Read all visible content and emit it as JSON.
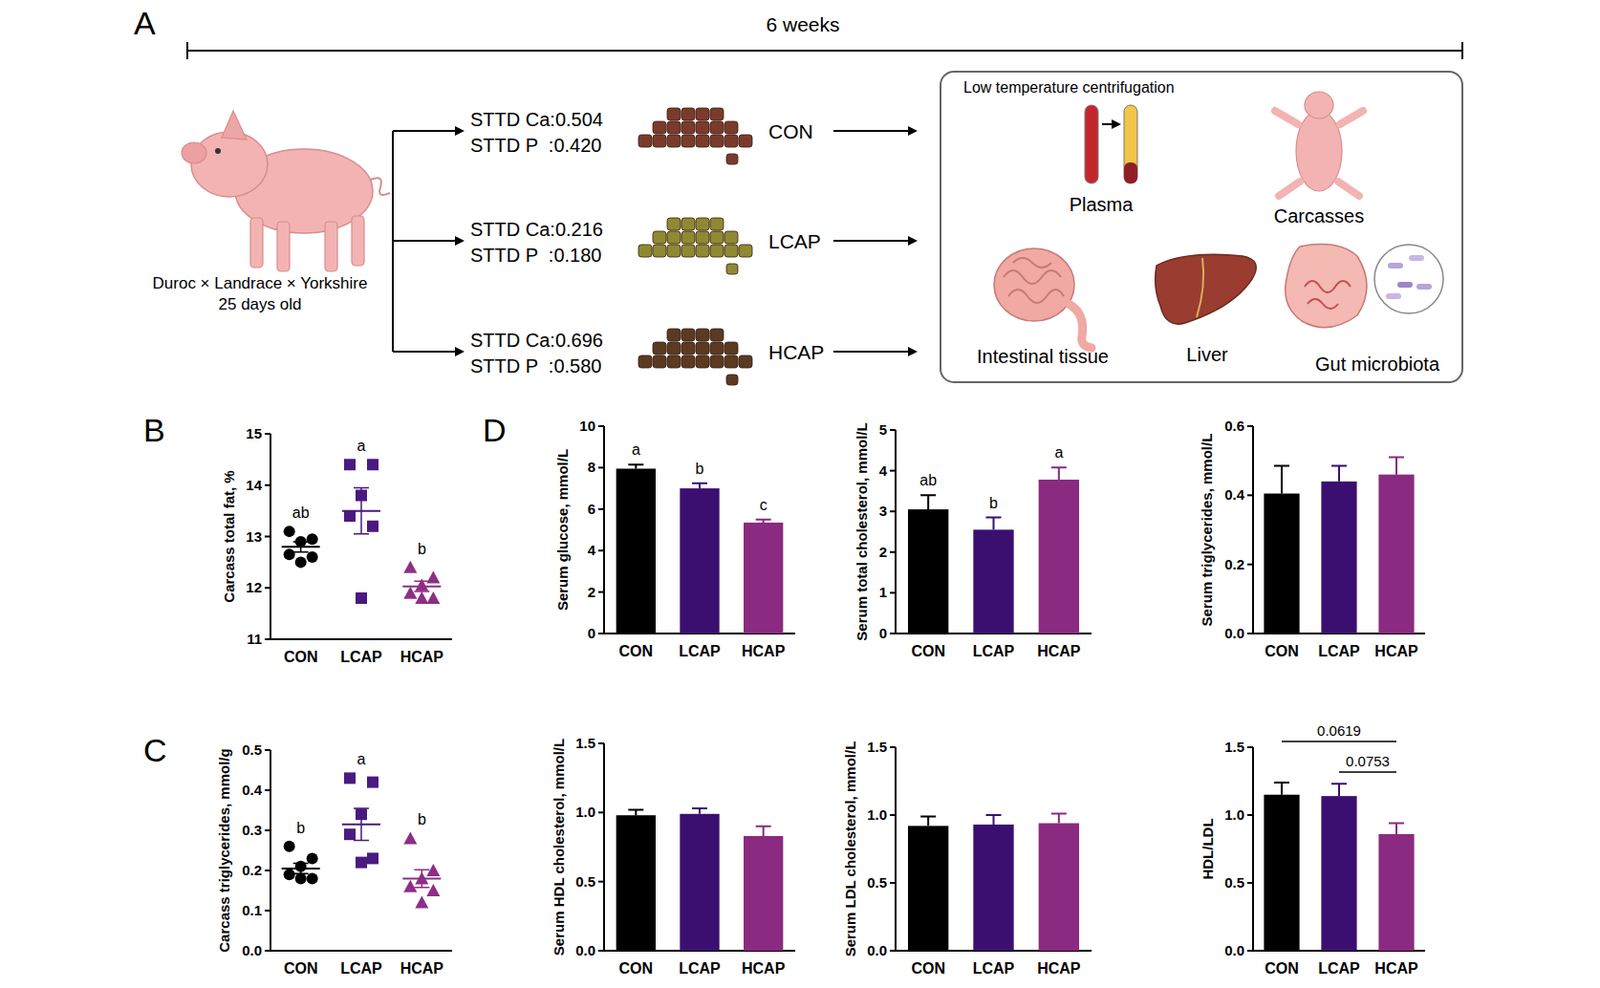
{
  "panel_labels": [
    "A",
    "B",
    "C",
    "D"
  ],
  "panel_a": {
    "duration": "6 weeks",
    "animal": {
      "breed": "Duroc × Landrace × Yorkshire",
      "age": "25 days old"
    },
    "diets": [
      {
        "name": "CON",
        "ca": "STTD Ca:0.504",
        "p": "STTD P  :0.420"
      },
      {
        "name": "LCAP",
        "ca": "STTD Ca:0.216",
        "p": "STTD P  :0.180"
      },
      {
        "name": "HCAP",
        "ca": "STTD Ca:0.696",
        "p": "STTD P  :0.580"
      }
    ],
    "sampling": {
      "note": "Low temperature centrifugation",
      "samples": [
        "Plasma",
        "Carcasses",
        "Intestinal tissue",
        "Liver",
        "Gut microbiota"
      ]
    }
  },
  "chart_data": [
    {
      "type": "dot_plot",
      "y_label": "Carcass total fat, %",
      "ylim": [
        11,
        15
      ],
      "yticks": [
        11,
        12,
        13,
        14,
        15
      ],
      "series": [
        {
          "name": "CON",
          "color": "#000000",
          "marker": "circle",
          "values": [
            13.1,
            12.95,
            12.9,
            12.65,
            12.6,
            12.5
          ],
          "mean": 12.8,
          "error": 0.1,
          "group_label": "ab"
        },
        {
          "name": "LCAP",
          "color": "#4a1a80",
          "marker": "square",
          "values": [
            14.4,
            14.4,
            13.8,
            13.4,
            13.2,
            11.8
          ],
          "mean": 13.5,
          "error": 0.45,
          "group_label": "a"
        },
        {
          "name": "HCAP",
          "color": "#8e2e86",
          "marker": "triangle",
          "values": [
            12.4,
            12.2,
            12.05,
            11.9,
            11.8,
            11.8
          ],
          "mean": 12.03,
          "error": 0.1,
          "group_label": "b"
        }
      ]
    },
    {
      "type": "dot_plot",
      "y_label": "Carcass triglycerides, mmol/g",
      "ylim": [
        0,
        0.5
      ],
      "yticks": [
        {
          "value": 0,
          "label": "0.0"
        },
        0.1,
        0.2,
        0.3,
        0.4,
        0.5
      ],
      "series": [
        {
          "name": "CON",
          "color": "#000000",
          "marker": "circle",
          "values": [
            0.26,
            0.23,
            0.21,
            0.19,
            0.18,
            0.18
          ],
          "mean": 0.205,
          "error": 0.013,
          "group_label": "b"
        },
        {
          "name": "LCAP",
          "color": "#4a1a80",
          "marker": "square",
          "values": [
            0.43,
            0.42,
            0.34,
            0.29,
            0.23,
            0.22
          ],
          "mean": 0.315,
          "error": 0.04,
          "group_label": "a"
        },
        {
          "name": "HCAP",
          "color": "#8e2e86",
          "marker": "triangle",
          "values": [
            0.28,
            0.2,
            0.18,
            0.16,
            0.15,
            0.12
          ],
          "mean": 0.18,
          "error": 0.022,
          "group_label": "b"
        }
      ]
    },
    {
      "type": "bar",
      "y_label": "Serum glucose, mmol/L",
      "categories": [
        "CON",
        "LCAP",
        "HCAP"
      ],
      "values": [
        7.95,
        7.0,
        5.35
      ],
      "errors": [
        0.2,
        0.25,
        0.15
      ],
      "colors": [
        "#000000",
        "#3b0f6f",
        "#8a2a80"
      ],
      "group_labels": [
        "a",
        "b",
        "c"
      ],
      "ylim": [
        0,
        10
      ],
      "yticks": [
        0,
        2,
        4,
        6,
        8,
        10
      ]
    },
    {
      "type": "bar",
      "y_label": "Serum total cholesterol, mmol/L",
      "categories": [
        "CON",
        "LCAP",
        "HCAP"
      ],
      "values": [
        3.05,
        2.55,
        3.78
      ],
      "errors": [
        0.35,
        0.3,
        0.3
      ],
      "colors": [
        "#000000",
        "#3b0f6f",
        "#8a2a80"
      ],
      "group_labels": [
        "ab",
        "b",
        "a"
      ],
      "ylim": [
        0,
        5
      ],
      "yticks": [
        0,
        1,
        2,
        3,
        4,
        5
      ]
    },
    {
      "type": "bar",
      "y_label": "Serum triglycerides, mmol/L",
      "categories": [
        "CON",
        "LCAP",
        "HCAP"
      ],
      "values": [
        0.405,
        0.44,
        0.46
      ],
      "errors": [
        0.08,
        0.045,
        0.05
      ],
      "colors": [
        "#000000",
        "#3b0f6f",
        "#8a2a80"
      ],
      "ylim": [
        0,
        0.6
      ],
      "yticks": [
        {
          "value": 0,
          "label": "0.0"
        },
        0.2,
        0.4,
        0.6
      ]
    },
    {
      "type": "bar",
      "y_label": "Serum HDL cholesterol, mmol/L",
      "categories": [
        "CON",
        "LCAP",
        "HCAP"
      ],
      "values": [
        0.98,
        0.99,
        0.83
      ],
      "errors": [
        0.04,
        0.04,
        0.07
      ],
      "colors": [
        "#000000",
        "#3b0f6f",
        "#8a2a80"
      ],
      "ylim": [
        0,
        1.5
      ],
      "yticks": [
        {
          "value": 0,
          "label": "0.0"
        },
        0.5,
        {
          "value": 1,
          "label": "1.0"
        },
        1.5
      ]
    },
    {
      "type": "bar",
      "y_label": "Serum LDL cholesterol, mmol/L",
      "categories": [
        "CON",
        "LCAP",
        "HCAP"
      ],
      "values": [
        0.92,
        0.93,
        0.94
      ],
      "errors": [
        0.07,
        0.07,
        0.07
      ],
      "colors": [
        "#000000",
        "#3b0f6f",
        "#8a2a80"
      ],
      "ylim": [
        0,
        1.5
      ],
      "yticks": [
        {
          "value": 0,
          "label": "0.0"
        },
        0.5,
        {
          "value": 1,
          "label": "1.0"
        },
        1.5
      ]
    },
    {
      "type": "bar",
      "y_label": "HDL/LDL",
      "categories": [
        "CON",
        "LCAP",
        "HCAP"
      ],
      "values": [
        1.15,
        1.14,
        0.86
      ],
      "errors": [
        0.09,
        0.09,
        0.08
      ],
      "colors": [
        "#000000",
        "#3b0f6f",
        "#8a2a80"
      ],
      "ylim": [
        0,
        1.5
      ],
      "yticks": [
        {
          "value": 0,
          "label": "0.0"
        },
        0.5,
        {
          "value": 1,
          "label": "1.0"
        },
        1.5
      ],
      "comparisons": [
        {
          "groups": [
            "CON",
            "HCAP"
          ],
          "label": "0.0619"
        },
        {
          "groups": [
            "LCAP",
            "HCAP"
          ],
          "label": "0.0753"
        }
      ]
    }
  ]
}
